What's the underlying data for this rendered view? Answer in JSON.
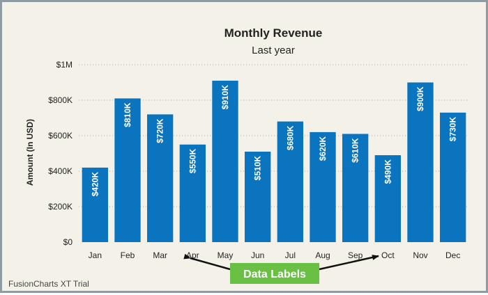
{
  "chart_data": {
    "type": "bar",
    "title": "Monthly Revenue",
    "subtitle": "Last year",
    "xlabel": "",
    "ylabel": "Amount (In USD)",
    "ylim": [
      0,
      1000000
    ],
    "yticks": [
      0,
      200000,
      400000,
      600000,
      800000,
      1000000
    ],
    "ytick_labels": [
      "$0",
      "$200K",
      "$400K",
      "$600K",
      "$800K",
      "$1M"
    ],
    "categories": [
      "Jan",
      "Feb",
      "Mar",
      "Apr",
      "May",
      "Jun",
      "Jul",
      "Aug",
      "Sep",
      "Oct",
      "Nov",
      "Dec"
    ],
    "values": [
      420000,
      810000,
      720000,
      550000,
      910000,
      510000,
      680000,
      620000,
      610000,
      490000,
      900000,
      730000
    ],
    "data_labels": [
      "$420K",
      "$810K",
      "$720K",
      "$550K",
      "$910K",
      "$510K",
      "$680K",
      "$620K",
      "$610K",
      "$490K",
      "$900K",
      "$730K"
    ],
    "bar_color": "#0a75be",
    "grid": true,
    "annotation": {
      "text": "Data Labels",
      "color": "#6abf45",
      "points_to": [
        "Apr",
        "Oct"
      ]
    }
  },
  "watermark": "FusionCharts XT Trial"
}
